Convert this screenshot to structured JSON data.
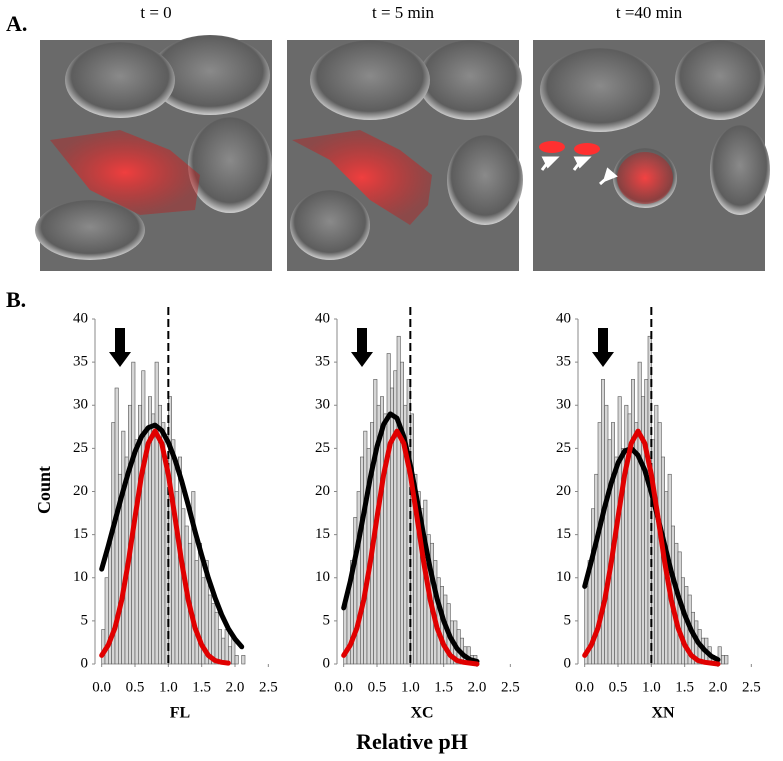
{
  "panel_a": {
    "label": "A.",
    "frames": [
      "t = 0",
      "t = 5 min",
      "t =40 min"
    ]
  },
  "panel_b_label": "B.",
  "y_label": "Count",
  "x_label": "Relative pH",
  "chart_data": [
    {
      "type": "histogram",
      "x_label": "FL",
      "color": "#d6d6d6",
      "edgecolor": "#555555",
      "reference_line": 1.0,
      "bins": [
        0.0,
        0.05,
        0.1,
        0.15,
        0.2,
        0.25,
        0.3,
        0.35,
        0.4,
        0.45,
        0.5,
        0.55,
        0.6,
        0.65,
        0.7,
        0.75,
        0.8,
        0.85,
        0.9,
        0.95,
        1.0,
        1.05,
        1.1,
        1.15,
        1.2,
        1.25,
        1.3,
        1.35,
        1.4,
        1.45,
        1.5,
        1.55,
        1.6,
        1.65,
        1.7,
        1.75,
        1.8,
        1.85,
        1.9,
        1.95,
        2.0,
        2.05,
        2.1,
        2.15
      ],
      "values": [
        4,
        10,
        14,
        28,
        32,
        22,
        27,
        24,
        30,
        35,
        26,
        30,
        34,
        27,
        31,
        29,
        35,
        30,
        28,
        24,
        31,
        26,
        20,
        24,
        18,
        16,
        14,
        20,
        12,
        14,
        10,
        12,
        8,
        7,
        6,
        4,
        3,
        4,
        2,
        3,
        1,
        0,
        1
      ],
      "lines": [
        {
          "color": "#000000",
          "x": [
            0,
            0.1,
            0.2,
            0.3,
            0.4,
            0.5,
            0.6,
            0.7,
            0.8,
            0.9,
            1.0,
            1.1,
            1.2,
            1.3,
            1.4,
            1.5,
            1.6,
            1.7,
            1.8,
            1.9,
            2.0,
            2.1
          ],
          "values": [
            11.0,
            13.7,
            16.6,
            19.5,
            22.2,
            24.6,
            26.4,
            27.4,
            27.7,
            27.1,
            25.7,
            23.7,
            21.2,
            18.4,
            15.4,
            12.6,
            10.0,
            7.7,
            5.7,
            4.1,
            2.9,
            2.0
          ]
        },
        {
          "color": "#e00000",
          "x": [
            0,
            0.1,
            0.2,
            0.3,
            0.4,
            0.5,
            0.6,
            0.7,
            0.8,
            0.9,
            1.0,
            1.1,
            1.2,
            1.3,
            1.4,
            1.5,
            1.6,
            1.7,
            1.8,
            1.9
          ],
          "values": [
            1.0,
            2.2,
            4.2,
            7.4,
            11.8,
            17.0,
            22.0,
            25.6,
            27.0,
            25.6,
            22.0,
            17.0,
            11.8,
            7.4,
            4.2,
            2.2,
            1.0,
            0.4,
            0.2,
            0.1
          ]
        }
      ],
      "xlim": [
        -0.1,
        2.6
      ],
      "ylim": [
        0,
        40
      ],
      "xticks": [
        {
          "value": 0,
          "label": "0.0"
        },
        {
          "value": 0.5,
          "label": "0.5"
        },
        {
          "value": 1,
          "label": "1.0"
        },
        {
          "value": 1.5,
          "label": "1.5"
        },
        {
          "value": 2,
          "label": "2.0"
        },
        {
          "value": 2.5,
          "label": "2.5"
        }
      ],
      "yticks": [
        0,
        5,
        10,
        15,
        20,
        25,
        30,
        35,
        40
      ]
    },
    {
      "type": "histogram",
      "x_label": "XC",
      "color": "#d6d6d6",
      "edgecolor": "#555555",
      "reference_line": 1.0,
      "bins": [
        0.0,
        0.05,
        0.1,
        0.15,
        0.2,
        0.25,
        0.3,
        0.35,
        0.4,
        0.45,
        0.5,
        0.55,
        0.6,
        0.65,
        0.7,
        0.75,
        0.8,
        0.85,
        0.9,
        0.95,
        1.0,
        1.05,
        1.1,
        1.15,
        1.2,
        1.25,
        1.3,
        1.35,
        1.4,
        1.45,
        1.5,
        1.55,
        1.6,
        1.65,
        1.7,
        1.75,
        1.8,
        1.85,
        1.9,
        1.95,
        2.0,
        2.05,
        2.1,
        2.15
      ],
      "values": [
        7,
        9,
        12,
        17,
        20,
        24,
        27,
        25,
        28,
        33,
        30,
        31,
        29,
        36,
        32,
        34,
        38,
        35,
        30,
        33,
        29,
        22,
        20,
        18,
        19,
        15,
        14,
        12,
        10,
        9,
        8,
        7,
        5,
        5,
        4,
        3,
        2,
        2,
        1,
        1,
        0,
        0,
        0
      ],
      "lines": [
        {
          "color": "#000000",
          "x": [
            0,
            0.1,
            0.2,
            0.3,
            0.4,
            0.5,
            0.6,
            0.7,
            0.8,
            0.9,
            1.0,
            1.1,
            1.2,
            1.3,
            1.4,
            1.5,
            1.6,
            1.7,
            1.8,
            1.9,
            2.0
          ],
          "values": [
            6.5,
            9.6,
            13.3,
            17.4,
            21.6,
            25.2,
            27.8,
            29.0,
            28.5,
            26.4,
            23.1,
            19.1,
            14.9,
            11.0,
            7.6,
            5.0,
            3.1,
            1.8,
            1.0,
            0.5,
            0.3
          ]
        },
        {
          "color": "#e00000",
          "x": [
            0,
            0.1,
            0.2,
            0.3,
            0.4,
            0.5,
            0.6,
            0.7,
            0.8,
            0.9,
            1.0,
            1.1,
            1.2,
            1.3,
            1.4,
            1.5,
            1.6,
            1.7,
            1.8,
            1.9,
            2.0
          ],
          "values": [
            1.0,
            2.2,
            4.2,
            7.4,
            11.8,
            17.0,
            22.0,
            25.6,
            27.0,
            25.6,
            22.0,
            17.0,
            11.8,
            7.4,
            4.2,
            2.2,
            1.0,
            0.4,
            0.2,
            0.1,
            0.0
          ]
        }
      ],
      "xlim": [
        -0.1,
        2.6
      ],
      "ylim": [
        0,
        40
      ],
      "xticks": [
        {
          "value": 0,
          "label": "0.0"
        },
        {
          "value": 0.5,
          "label": "0.5"
        },
        {
          "value": 1,
          "label": "1.0"
        },
        {
          "value": 1.5,
          "label": "1.5"
        },
        {
          "value": 2,
          "label": "2.0"
        },
        {
          "value": 2.5,
          "label": "2.5"
        }
      ],
      "yticks": [
        0,
        5,
        10,
        15,
        20,
        25,
        30,
        35,
        40
      ]
    },
    {
      "type": "histogram",
      "x_label": "XN",
      "color": "#d6d6d6",
      "edgecolor": "#555555",
      "reference_line": 1.0,
      "bins": [
        0.0,
        0.05,
        0.1,
        0.15,
        0.2,
        0.25,
        0.3,
        0.35,
        0.4,
        0.45,
        0.5,
        0.55,
        0.6,
        0.65,
        0.7,
        0.75,
        0.8,
        0.85,
        0.9,
        0.95,
        1.0,
        1.05,
        1.1,
        1.15,
        1.2,
        1.25,
        1.3,
        1.35,
        1.4,
        1.45,
        1.5,
        1.55,
        1.6,
        1.65,
        1.7,
        1.75,
        1.8,
        1.85,
        1.9,
        1.95,
        2.0,
        2.05,
        2.1,
        2.15
      ],
      "values": [
        9,
        12,
        18,
        22,
        28,
        33,
        30,
        26,
        28,
        24,
        31,
        25,
        30,
        29,
        33,
        28,
        35,
        31,
        33,
        38,
        26,
        30,
        28,
        24,
        20,
        22,
        16,
        14,
        13,
        10,
        9,
        8,
        6,
        5,
        4,
        3,
        3,
        2,
        1,
        0,
        2,
        1,
        1
      ],
      "lines": [
        {
          "color": "#000000",
          "x": [
            0,
            0.1,
            0.2,
            0.3,
            0.4,
            0.5,
            0.6,
            0.7,
            0.8,
            0.9,
            1.0,
            1.1,
            1.2,
            1.3,
            1.4,
            1.5,
            1.6,
            1.7,
            1.8,
            1.9,
            2.0
          ],
          "values": [
            9.0,
            11.9,
            15.0,
            18.2,
            21.0,
            23.3,
            24.7,
            25.0,
            24.2,
            22.5,
            19.9,
            16.9,
            13.8,
            10.7,
            8.0,
            5.7,
            3.9,
            2.5,
            1.6,
            0.9,
            0.5
          ]
        },
        {
          "color": "#e00000",
          "x": [
            0,
            0.1,
            0.2,
            0.3,
            0.4,
            0.5,
            0.6,
            0.7,
            0.8,
            0.9,
            1.0,
            1.1,
            1.2,
            1.3,
            1.4,
            1.5,
            1.6,
            1.7,
            1.8,
            1.9,
            2.0
          ],
          "values": [
            1.0,
            2.2,
            4.2,
            7.4,
            11.8,
            17.0,
            22.0,
            25.6,
            27.0,
            25.6,
            22.0,
            17.0,
            11.8,
            7.4,
            4.2,
            2.2,
            1.0,
            0.4,
            0.2,
            0.1,
            0.0
          ]
        }
      ],
      "xlim": [
        -0.1,
        2.6
      ],
      "ylim": [
        0,
        40
      ],
      "xticks": [
        {
          "value": 0,
          "label": "0.0"
        },
        {
          "value": 0.5,
          "label": "0.5"
        },
        {
          "value": 1,
          "label": "1.0"
        },
        {
          "value": 1.5,
          "label": "1.5"
        },
        {
          "value": 2,
          "label": "2.0"
        },
        {
          "value": 2.5,
          "label": "2.5"
        }
      ],
      "yticks": [
        0,
        5,
        10,
        15,
        20,
        25,
        30,
        35,
        40
      ]
    }
  ]
}
